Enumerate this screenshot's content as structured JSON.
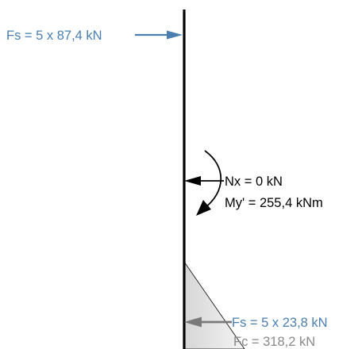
{
  "labels": {
    "fs_top": "Fs = 5 x 87,4 kN",
    "nx": "Nx = 0 kN",
    "my": "My' = 255,4 kNm",
    "fs_bottom": "Fs = 5 x 23,8 kN",
    "fc": "Fc = 318,2 kN"
  },
  "colors": {
    "steel_force": "#4a7fb0",
    "concrete_force": "#7a7a7a",
    "concrete_text": "#8a8a8a",
    "compression_zone": "#e6e6e6",
    "section_line": "#000000"
  }
}
